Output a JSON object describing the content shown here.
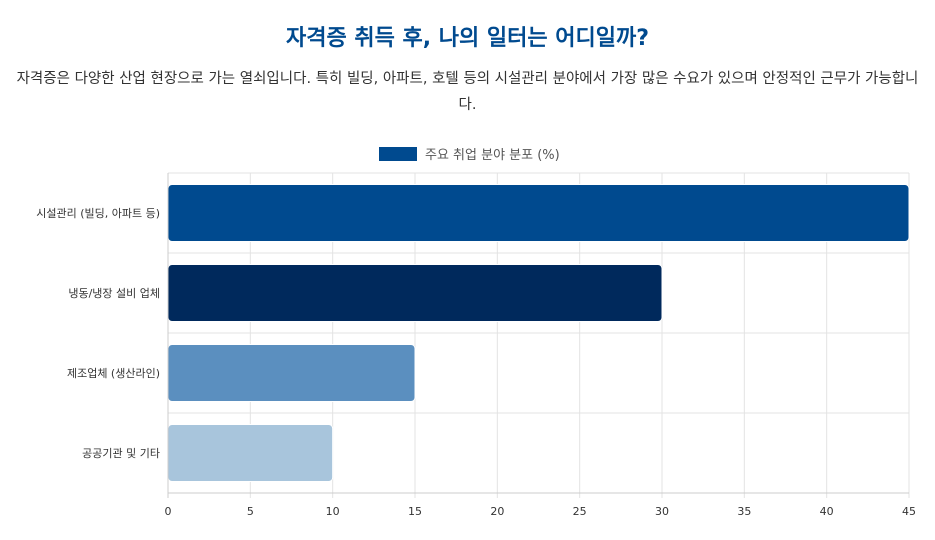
{
  "header": {
    "title": "자격증 취득 후, 나의 일터는 어디일까?",
    "subtitle": "자격증은 다양한 산업 현장으로 가는 열쇠입니다. 특히 빌딩, 아파트, 호텔 등의 시설관리 분야에서 가장 많은 수요가 있으며 안정적인 근무가 가능합니다."
  },
  "chart_data": {
    "type": "bar",
    "orientation": "horizontal",
    "categories": [
      "시설관리 (빌딩, 아파트 등)",
      "냉동/냉장 설비 업체",
      "제조업체 (생산라인)",
      "공공기관 및 기타"
    ],
    "series": [
      {
        "name": "주요 취업 분야 분포 (%)",
        "values": [
          45,
          30,
          15,
          10
        ],
        "colors": [
          "#004a8f",
          "#00295c",
          "#5b8fbf",
          "#a8c5dc"
        ]
      }
    ],
    "legend_color": "#004a8f",
    "xlim": [
      0,
      45
    ],
    "xticks": [
      0,
      5,
      10,
      15,
      20,
      25,
      30,
      35,
      40,
      45
    ],
    "grid": true,
    "legend_position": "top"
  }
}
